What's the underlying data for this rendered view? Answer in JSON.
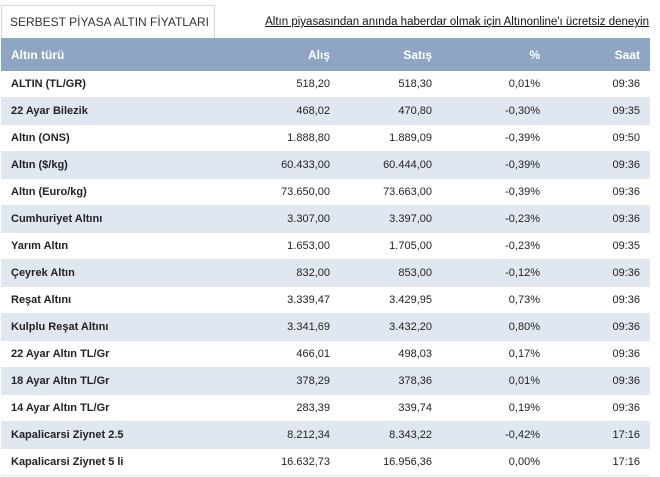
{
  "header": {
    "tab_title": "SERBEST PİYASA ALTIN FİYATLARI",
    "promo_link": "Altın piyasasından anında haberdar olmak için Altınonline'ı ücretsiz deneyin"
  },
  "table": {
    "columns": [
      "Altın türü",
      "Alış",
      "Satış",
      "%",
      "Saat"
    ],
    "rows": [
      [
        "ALTIN (TL/GR)",
        "518,20",
        "518,30",
        "0,01%",
        "09:36"
      ],
      [
        "22 Ayar Bilezik",
        "468,02",
        "470,80",
        "-0,30%",
        "09:35"
      ],
      [
        "Altın (ONS)",
        "1.888,80",
        "1.889,09",
        "-0,39%",
        "09:50"
      ],
      [
        "Altın ($/kg)",
        "60.433,00",
        "60.444,00",
        "-0,39%",
        "09:36"
      ],
      [
        "Altın (Euro/kg)",
        "73.650,00",
        "73.663,00",
        "-0,39%",
        "09:36"
      ],
      [
        "Cumhuriyet Altını",
        "3.307,00",
        "3.397,00",
        "-0,23%",
        "09:36"
      ],
      [
        "Yarım Altın",
        "1.653,00",
        "1.705,00",
        "-0,23%",
        "09:35"
      ],
      [
        "Çeyrek Altın",
        "832,00",
        "853,00",
        "-0,12%",
        "09:36"
      ],
      [
        "Reşat Altını",
        "3.339,47",
        "3.429,95",
        "0,73%",
        "09:36"
      ],
      [
        "Kulplu Reşat Altını",
        "3.341,69",
        "3.432,20",
        "0,80%",
        "09:36"
      ],
      [
        "22 Ayar Altın TL/Gr",
        "466,01",
        "498,03",
        "0,17%",
        "09:36"
      ],
      [
        "18 Ayar Altın TL/Gr",
        "378,29",
        "378,36",
        "0,01%",
        "09:36"
      ],
      [
        "14 Ayar Altın TL/Gr",
        "283,39",
        "339,74",
        "0,19%",
        "09:36"
      ],
      [
        "Kapalicarsi Ziynet 2.5",
        "8.212,34",
        "8.343,22",
        "-0,42%",
        "17:16"
      ],
      [
        "Kapalicarsi Ziynet 5 li",
        "16.632,73",
        "16.956,36",
        "0,00%",
        "17:16"
      ]
    ]
  },
  "colors": {
    "header_bg": "#8fa5c4",
    "stripe_bg": "#e1e7f0"
  }
}
